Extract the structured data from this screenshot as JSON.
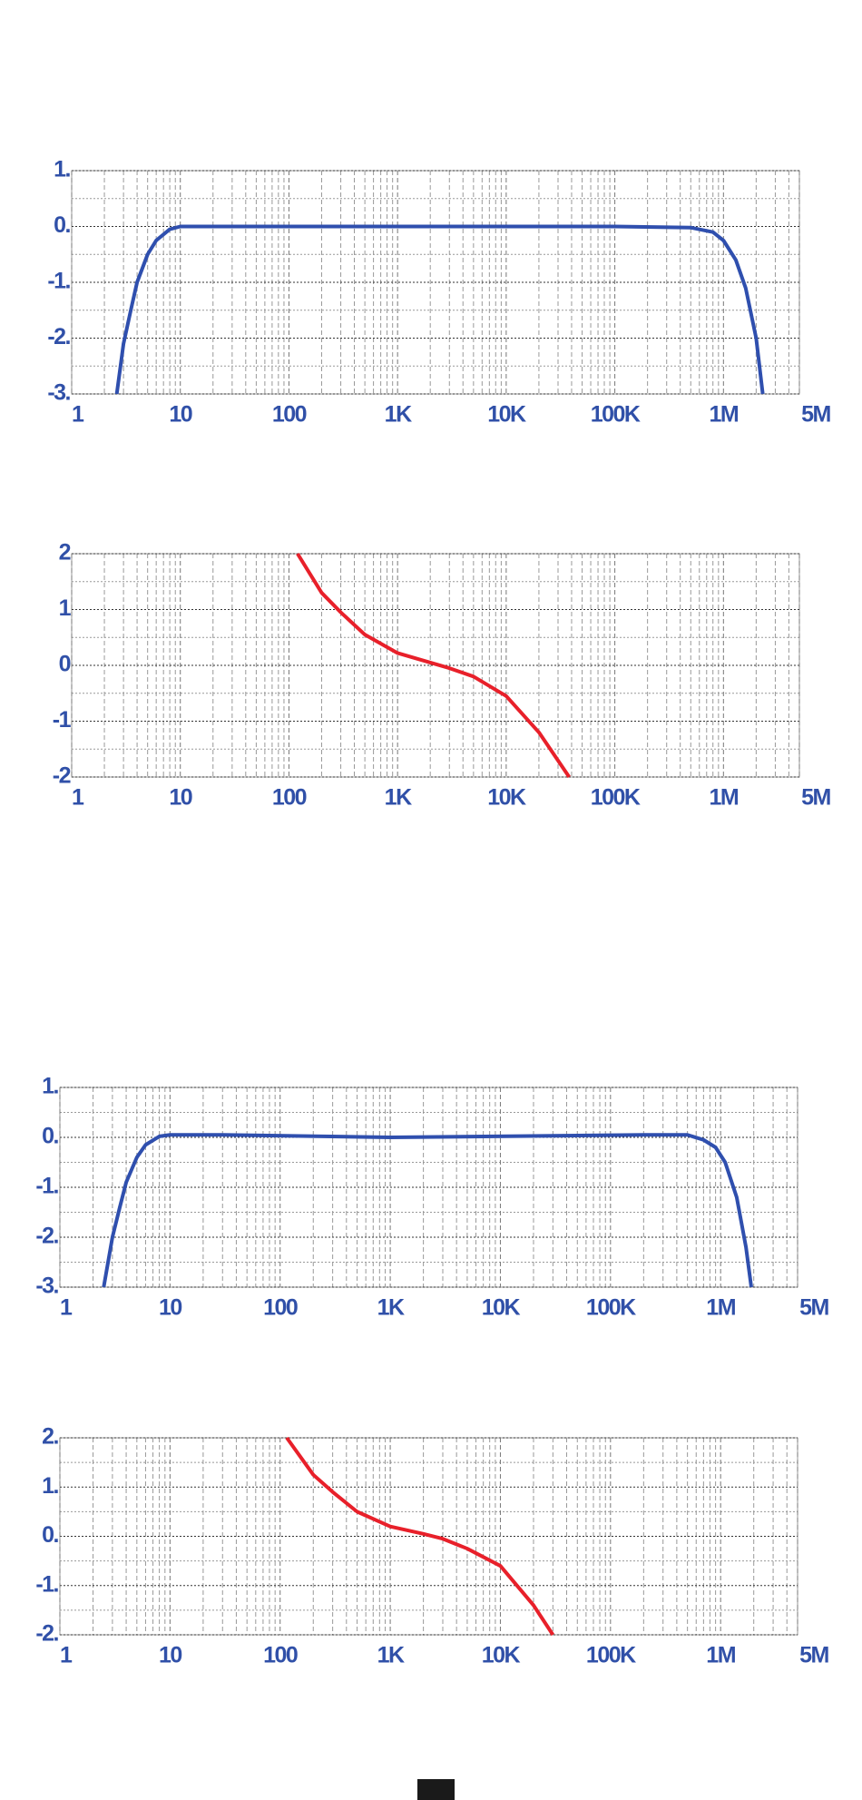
{
  "chart_data": [
    {
      "type": "line",
      "xscale": "log",
      "grid": true,
      "color": "#2f4fae",
      "x": [
        2.6,
        3,
        3.5,
        4,
        5,
        6,
        8,
        10,
        100,
        1000,
        10000,
        100000,
        500000,
        800000,
        1000000,
        1300000,
        1600000,
        2000000,
        2300000
      ],
      "values": [
        -3,
        -2.1,
        -1.5,
        -1.0,
        -0.5,
        -0.25,
        -0.05,
        0,
        0,
        0,
        0,
        0,
        -0.02,
        -0.1,
        -0.25,
        -0.6,
        -1.1,
        -2.0,
        -3
      ],
      "xlim": [
        1,
        5000000
      ],
      "xticks": [
        1,
        10,
        100,
        {
          "value": 1000,
          "label": "1K"
        },
        {
          "value": 10000,
          "label": "10K"
        },
        {
          "value": 100000,
          "label": "100K"
        },
        {
          "value": 1000000,
          "label": "1M"
        },
        {
          "value": 5000000,
          "label": "5M"
        }
      ],
      "ylim": [
        -3,
        1
      ],
      "yticks": [
        {
          "value": 1,
          "label": "1."
        },
        {
          "value": 0,
          "label": "0."
        },
        {
          "value": -1,
          "label": "-1."
        },
        {
          "value": -2,
          "label": "-2."
        },
        {
          "value": -3,
          "label": "-3."
        }
      ]
    },
    {
      "type": "line",
      "xscale": "log",
      "grid": true,
      "color": "#e8202a",
      "x": [
        120,
        200,
        300,
        500,
        1000,
        2000,
        3000,
        5000,
        10000,
        20000,
        38000
      ],
      "values": [
        2,
        1.3,
        0.95,
        0.55,
        0.22,
        0.05,
        -0.05,
        -0.2,
        -0.55,
        -1.2,
        -2
      ],
      "xlim": [
        1,
        5000000
      ],
      "xticks": [
        1,
        10,
        100,
        {
          "value": 1000,
          "label": "1K"
        },
        {
          "value": 10000,
          "label": "10K"
        },
        {
          "value": 100000,
          "label": "100K"
        },
        {
          "value": 1000000,
          "label": "1M"
        },
        {
          "value": 5000000,
          "label": "5M"
        }
      ],
      "ylim": [
        -2,
        2
      ],
      "yticks": [
        2,
        1,
        0,
        -1,
        -2
      ]
    },
    {
      "type": "line",
      "xscale": "log",
      "grid": true,
      "color": "#2f4fae",
      "x": [
        2.5,
        3,
        3.5,
        4,
        5,
        6,
        8,
        10,
        30,
        1000,
        200000,
        500000,
        700000,
        900000,
        1100000,
        1400000,
        1700000,
        1900000
      ],
      "values": [
        -3,
        -2.0,
        -1.4,
        -0.9,
        -0.4,
        -0.15,
        0.02,
        0.05,
        0.05,
        0,
        0.05,
        0.05,
        -0.05,
        -0.2,
        -0.5,
        -1.2,
        -2.2,
        -3
      ],
      "xlim": [
        1,
        5000000
      ],
      "xticks": [
        1,
        10,
        100,
        {
          "value": 1000,
          "label": "1K"
        },
        {
          "value": 10000,
          "label": "10K"
        },
        {
          "value": 100000,
          "label": "100K"
        },
        {
          "value": 1000000,
          "label": "1M"
        },
        {
          "value": 5000000,
          "label": "5M"
        }
      ],
      "ylim": [
        -3,
        1
      ],
      "yticks": [
        {
          "value": 1,
          "label": "1."
        },
        {
          "value": 0,
          "label": "0."
        },
        {
          "value": -1,
          "label": "-1."
        },
        {
          "value": -2,
          "label": "-2."
        },
        {
          "value": -3,
          "label": "-3."
        }
      ]
    },
    {
      "type": "line",
      "xscale": "log",
      "grid": true,
      "color": "#e8202a",
      "x": [
        115,
        200,
        300,
        500,
        1000,
        2000,
        3000,
        5000,
        10000,
        20000,
        30000
      ],
      "values": [
        2,
        1.25,
        0.9,
        0.5,
        0.2,
        0.05,
        -0.05,
        -0.25,
        -0.6,
        -1.4,
        -2
      ],
      "xlim": [
        1,
        5000000
      ],
      "xticks": [
        1,
        10,
        100,
        {
          "value": 1000,
          "label": "1K"
        },
        {
          "value": 10000,
          "label": "10K"
        },
        {
          "value": 100000,
          "label": "100K"
        },
        {
          "value": 1000000,
          "label": "1M"
        },
        {
          "value": 5000000,
          "label": "5M"
        }
      ],
      "ylim": [
        -2,
        2
      ],
      "yticks": [
        {
          "value": 2,
          "label": "2."
        },
        {
          "value": 1,
          "label": "1."
        },
        {
          "value": 0,
          "label": "0."
        },
        {
          "value": -1,
          "label": "-1."
        },
        {
          "value": -2,
          "label": "-2."
        }
      ]
    }
  ]
}
